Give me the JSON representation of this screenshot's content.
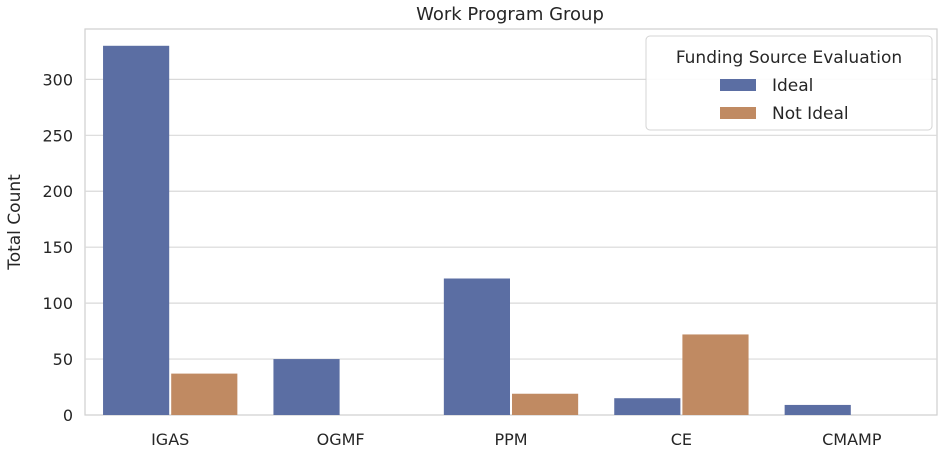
{
  "chart_data": {
    "type": "bar",
    "title": "Work Program Group",
    "xlabel": "",
    "ylabel": "Total Count",
    "categories": [
      "IGAS",
      "OGMF",
      "PPM",
      "CE",
      "CMAMP"
    ],
    "series": [
      {
        "name": "Ideal",
        "values": [
          330,
          50,
          122,
          15,
          9
        ],
        "color": "#5b6ea3"
      },
      {
        "name": "Not Ideal",
        "values": [
          37,
          0,
          19,
          72,
          0
        ],
        "color": "#c08a62"
      }
    ],
    "yticks": [
      0,
      50,
      100,
      150,
      200,
      250,
      300
    ],
    "ylim": [
      0,
      345
    ],
    "grid": true,
    "legend": {
      "title": "Funding Source Evaluation",
      "placement": "top-right"
    }
  }
}
